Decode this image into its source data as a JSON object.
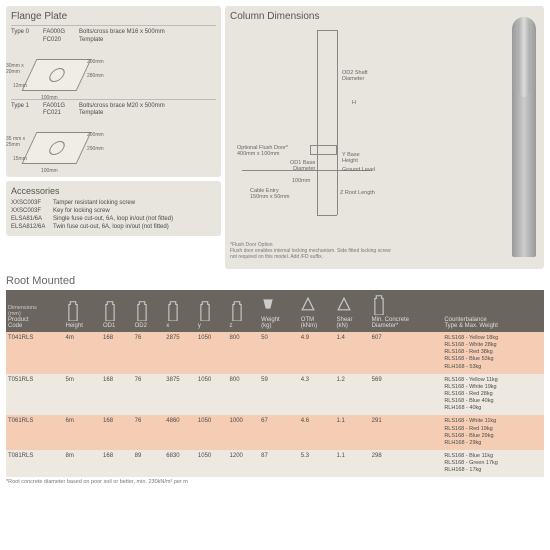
{
  "flange": {
    "title": "Flange Plate",
    "t0": {
      "label": "Type 0",
      "c1": "FA000G",
      "c2": "FC020",
      "d1": "Bolts/cross brace M16 x 500mm",
      "d2": "Template",
      "dims": {
        "a": "30mm x\n20mm",
        "b": "12mm",
        "c": "100mm",
        "d": "200mm",
        "e": "280mm"
      }
    },
    "t1": {
      "label": "Type 1",
      "c1": "FA001G",
      "c2": "FC021",
      "d1": "Bolts/cross brace M20 x 500mm",
      "d2": "Template",
      "dims": {
        "a": "35 mm x\n25mm",
        "b": "15mm",
        "c": "100mm",
        "d": "200mm",
        "e": "290mm"
      }
    }
  },
  "acc": {
    "title": "Accessories",
    "rows": [
      {
        "c": "XXSC003F",
        "d": "Tamper resistant locking screw"
      },
      {
        "c": "XXSC003F",
        "d": "Key for locking screw"
      },
      {
        "c": "ELSA81/6A",
        "d": "Single fuse cut-out, 6A, loop in/out (not fitted)"
      },
      {
        "c": "ELSA812/6A",
        "d": "Twin fuse cut-out, 6A, loop in/out (not fitted)"
      }
    ]
  },
  "col": {
    "title": "Column Dimensions",
    "l1": "OD2 Shaft\nDiameter",
    "l2": "Optional Flush Door*\n400mm x 100mm",
    "l3": "OD1 Base\nDiameter",
    "l4": "Cable Entry\n150mm x 50mm",
    "l5": "Ground Level",
    "l6": "Y Base\nHeight",
    "l7": "Z Root Length",
    "l8": "100mm",
    "l9": "H",
    "note": "*Flush Door Option\nFlush door enables internal locking mechanism. Side fitted locking screw\nnot required on this model. Add /FD suffix."
  },
  "root": {
    "title": "Root Mounted",
    "dimh": "Dimensions\n(mm)",
    "cols": [
      "Product\nCode",
      "Height",
      "OD1",
      "OD2",
      "x",
      "y",
      "z",
      "Weight\n(kg)",
      "OTM\n(kNm)",
      "Shear\n(kN)",
      "Min. Concrete\nDiameter*",
      "Counterbalance\nType & Max. Weight"
    ],
    "rows": [
      {
        "c": "T041RLS",
        "h": "4m",
        "o1": "168",
        "o2": "76",
        "x": "2875",
        "y": "1050",
        "z": "800",
        "w": "50",
        "otm": "4.9",
        "s": "1.4",
        "mc": "607",
        "cb": "RLS168 - Yellow 18kg\nRLS168 - White 28kg\nRLS168 - Red 38kg\nRLS168 - Blue 53kg\nRLH168 - 53kg"
      },
      {
        "c": "T051RLS",
        "h": "5m",
        "o1": "168",
        "o2": "76",
        "x": "3875",
        "y": "1050",
        "z": "800",
        "w": "59",
        "otm": "4.3",
        "s": "1.2",
        "mc": "569",
        "cb": "RLS168 - Yellow 11kg\nRLS168 - White 19kg\nRLS168 - Red 28kg\nRLS168 - Blue 40kg\nRLH168 - 40kg"
      },
      {
        "c": "T061RLS",
        "h": "6m",
        "o1": "168",
        "o2": "76",
        "x": "4860",
        "y": "1050",
        "z": "1000",
        "w": "67",
        "otm": "4.6",
        "s": "1.1",
        "mc": "291",
        "cb": "RLS168 - White 11kg\nRLS168 - Red 19kg\nRLS168 - Blue 29kg\nRLH168 - 29kg"
      },
      {
        "c": "T081RLS",
        "h": "8m",
        "o1": "168",
        "o2": "89",
        "x": "6830",
        "y": "1050",
        "z": "1200",
        "w": "87",
        "otm": "5.3",
        "s": "1.1",
        "mc": "298",
        "cb": "RLS168 - Blue 11kg\nRLS168 - Green 17kg\nRLH168 - 17kg"
      }
    ],
    "foot": "*Root concrete diameter based on poor soil or better, min. 230kN/m² per m"
  }
}
